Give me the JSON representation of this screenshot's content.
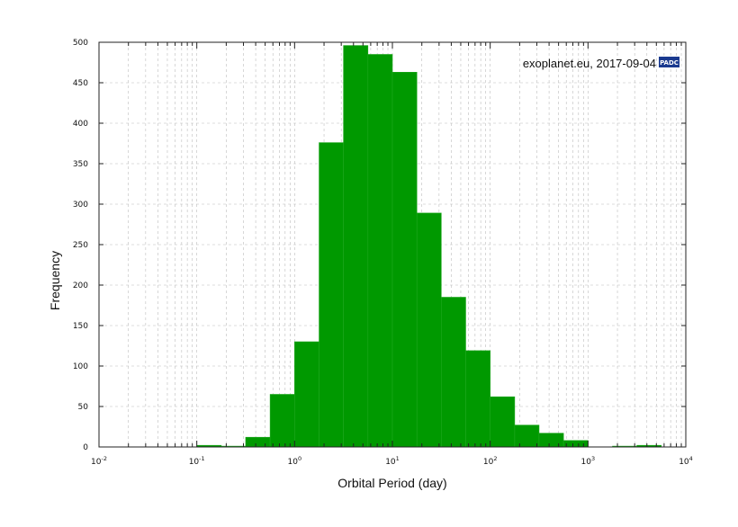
{
  "chart_data": {
    "type": "bar",
    "title": "",
    "xlabel": "Orbital Period (day)",
    "ylabel": "Frequency",
    "xscale": "log",
    "xlim": [
      0.01,
      10000
    ],
    "ylim": [
      0,
      500
    ],
    "yticks": [
      0,
      50,
      100,
      150,
      200,
      250,
      300,
      350,
      400,
      450,
      500
    ],
    "xticks": [
      {
        "value": 0.01,
        "base": "10",
        "exp": "-2"
      },
      {
        "value": 0.1,
        "base": "10",
        "exp": "-1"
      },
      {
        "value": 1,
        "base": "10",
        "exp": "0"
      },
      {
        "value": 10,
        "base": "10",
        "exp": "1"
      },
      {
        "value": 100,
        "base": "10",
        "exp": "2"
      },
      {
        "value": 1000,
        "base": "10",
        "exp": "3"
      },
      {
        "value": 10000,
        "base": "10",
        "exp": "4"
      }
    ],
    "grid": true,
    "bar_color": "#009900",
    "bins": [
      {
        "x0": 0.01,
        "x1": 0.0178,
        "count": 0
      },
      {
        "x0": 0.0178,
        "x1": 0.0316,
        "count": 0
      },
      {
        "x0": 0.0316,
        "x1": 0.0562,
        "count": 0
      },
      {
        "x0": 0.0562,
        "x1": 0.1,
        "count": 0
      },
      {
        "x0": 0.1,
        "x1": 0.178,
        "count": 2
      },
      {
        "x0": 0.178,
        "x1": 0.316,
        "count": 1
      },
      {
        "x0": 0.316,
        "x1": 0.562,
        "count": 12
      },
      {
        "x0": 0.562,
        "x1": 1,
        "count": 65
      },
      {
        "x0": 1,
        "x1": 1.78,
        "count": 130
      },
      {
        "x0": 1.78,
        "x1": 3.16,
        "count": 376
      },
      {
        "x0": 3.16,
        "x1": 5.62,
        "count": 496
      },
      {
        "x0": 5.62,
        "x1": 10,
        "count": 485
      },
      {
        "x0": 10,
        "x1": 17.8,
        "count": 463
      },
      {
        "x0": 17.8,
        "x1": 31.6,
        "count": 289
      },
      {
        "x0": 31.6,
        "x1": 56.2,
        "count": 185
      },
      {
        "x0": 56.2,
        "x1": 100,
        "count": 119
      },
      {
        "x0": 100,
        "x1": 178,
        "count": 62
      },
      {
        "x0": 178,
        "x1": 316,
        "count": 27
      },
      {
        "x0": 316,
        "x1": 562,
        "count": 17
      },
      {
        "x0": 562,
        "x1": 1000,
        "count": 8
      },
      {
        "x0": 1000,
        "x1": 1780,
        "count": 0
      },
      {
        "x0": 1780,
        "x1": 3160,
        "count": 1
      },
      {
        "x0": 3160,
        "x1": 5620,
        "count": 2
      },
      {
        "x0": 5620,
        "x1": 10000,
        "count": 0
      }
    ],
    "annotation": "exoplanet.eu, 2017-09-04",
    "logo": {
      "text": "PADC",
      "color": "#1a3a8f"
    }
  }
}
